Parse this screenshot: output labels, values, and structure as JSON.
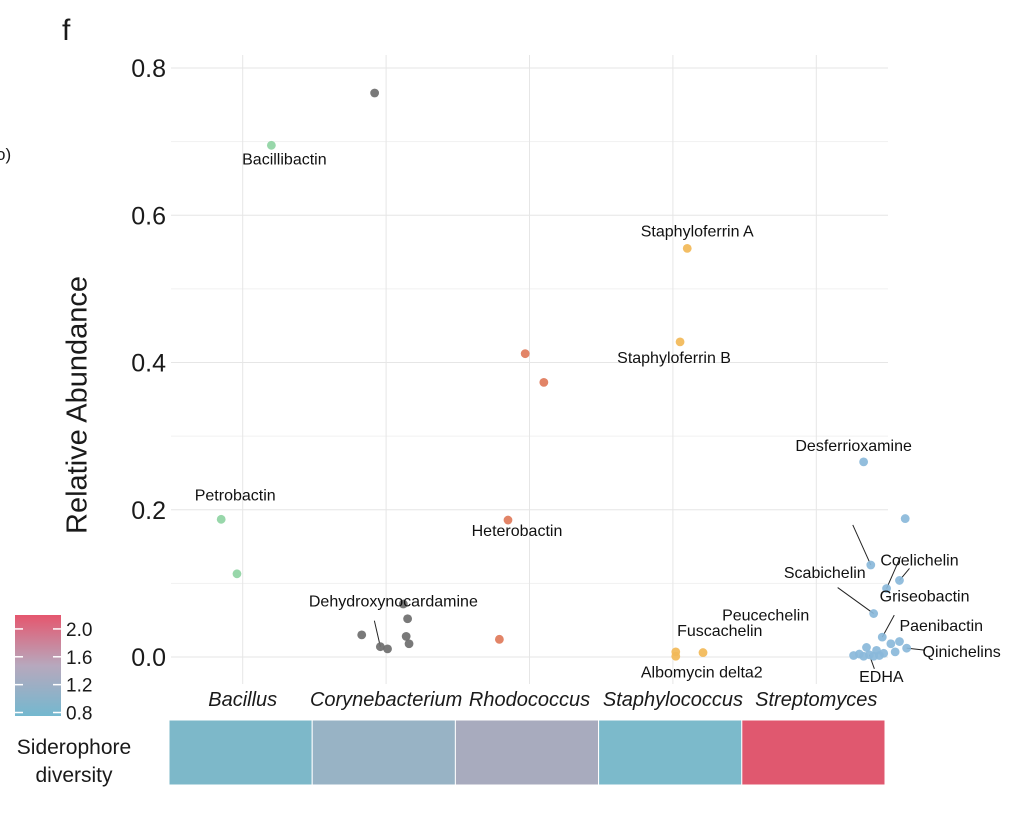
{
  "figure": {
    "panel_label": "f",
    "cut_text": "o)",
    "legend_title_line1": "Siderophore",
    "legend_title_line2": "diversity"
  },
  "chart_data": {
    "type": "scatter",
    "title": "",
    "xlabel": "",
    "ylabel": "Relative Abundance",
    "ylim": [
      0,
      0.8
    ],
    "yticks": [
      "0.0",
      "0.2",
      "0.4",
      "0.6",
      "0.8"
    ],
    "ytick_values": [
      0,
      0.2,
      0.4,
      0.6,
      0.8
    ],
    "grid": true,
    "categories": [
      "Bacillus",
      "Corynebacterium",
      "Rhodococcus",
      "Staphylococcus",
      "Streptomyces"
    ],
    "colors": {
      "Bacillus": "#8fd4a3",
      "Corynebacterium": "#6e6e6e",
      "Rhodococcus": "#e07a5a",
      "Staphylococcus": "#f2b857",
      "Streptomyces": "#8ab8da"
    },
    "points": [
      {
        "genus": "Bacillus",
        "offset": 0.2,
        "y": 0.695,
        "label": "Bacillibactin"
      },
      {
        "genus": "Bacillus",
        "offset": -0.15,
        "y": 0.187,
        "label": "Petrobactin"
      },
      {
        "genus": "Bacillus",
        "offset": -0.04,
        "y": 0.113,
        "label": ""
      },
      {
        "genus": "Corynebacterium",
        "offset": -0.08,
        "y": 0.766,
        "label": ""
      },
      {
        "genus": "Corynebacterium",
        "offset": 0.12,
        "y": 0.072,
        "label": ""
      },
      {
        "genus": "Corynebacterium",
        "offset": 0.15,
        "y": 0.052,
        "label": ""
      },
      {
        "genus": "Corynebacterium",
        "offset": -0.17,
        "y": 0.03,
        "label": ""
      },
      {
        "genus": "Corynebacterium",
        "offset": 0.14,
        "y": 0.028,
        "label": ""
      },
      {
        "genus": "Corynebacterium",
        "offset": 0.16,
        "y": 0.018,
        "label": ""
      },
      {
        "genus": "Corynebacterium",
        "offset": -0.04,
        "y": 0.014,
        "label": "Dehydroxynocardamine"
      },
      {
        "genus": "Corynebacterium",
        "offset": 0.01,
        "y": 0.011,
        "label": ""
      },
      {
        "genus": "Rhodococcus",
        "offset": -0.03,
        "y": 0.412,
        "label": ""
      },
      {
        "genus": "Rhodococcus",
        "offset": 0.1,
        "y": 0.373,
        "label": ""
      },
      {
        "genus": "Rhodococcus",
        "offset": -0.15,
        "y": 0.186,
        "label": "Heterobactin"
      },
      {
        "genus": "Rhodococcus",
        "offset": -0.21,
        "y": 0.024,
        "label": ""
      },
      {
        "genus": "Staphylococcus",
        "offset": 0.1,
        "y": 0.555,
        "label": "Staphyloferrin A"
      },
      {
        "genus": "Staphylococcus",
        "offset": 0.05,
        "y": 0.428,
        "label": "Staphyloferrin B"
      },
      {
        "genus": "Staphylococcus",
        "offset": 0.02,
        "y": 0.007,
        "label": "Fuscachelin"
      },
      {
        "genus": "Staphylococcus",
        "offset": 0.21,
        "y": 0.006,
        "label": ""
      },
      {
        "genus": "Staphylococcus",
        "offset": 0.02,
        "y": 0.001,
        "label": "Albomycin delta2"
      },
      {
        "genus": "Streptomyces",
        "offset": 0.33,
        "y": 0.265,
        "label": "Desferrioxamine"
      },
      {
        "genus": "Streptomyces",
        "offset": 0.62,
        "y": 0.188,
        "label": ""
      },
      {
        "genus": "Streptomyces",
        "offset": 0.38,
        "y": 0.125,
        "label": "Scabichelin"
      },
      {
        "genus": "Streptomyces",
        "offset": 0.58,
        "y": 0.104,
        "label": "Coelichelin"
      },
      {
        "genus": "Streptomyces",
        "offset": 0.49,
        "y": 0.093,
        "label": "Griseobactin"
      },
      {
        "genus": "Streptomyces",
        "offset": 0.4,
        "y": 0.059,
        "label": "Peucechelin"
      },
      {
        "genus": "Streptomyces",
        "offset": 0.46,
        "y": 0.027,
        "label": "Paenibactin"
      },
      {
        "genus": "Streptomyces",
        "offset": 0.58,
        "y": 0.021,
        "label": ""
      },
      {
        "genus": "Streptomyces",
        "offset": 0.52,
        "y": 0.018,
        "label": ""
      },
      {
        "genus": "Streptomyces",
        "offset": 0.63,
        "y": 0.012,
        "label": "Qinichelins"
      },
      {
        "genus": "Streptomyces",
        "offset": 0.35,
        "y": 0.013,
        "label": ""
      },
      {
        "genus": "Streptomyces",
        "offset": 0.42,
        "y": 0.009,
        "label": ""
      },
      {
        "genus": "Streptomyces",
        "offset": 0.55,
        "y": 0.007,
        "label": ""
      },
      {
        "genus": "Streptomyces",
        "offset": 0.47,
        "y": 0.005,
        "label": ""
      },
      {
        "genus": "Streptomyces",
        "offset": 0.3,
        "y": 0.004,
        "label": ""
      },
      {
        "genus": "Streptomyces",
        "offset": 0.37,
        "y": 0.003,
        "label": "EDHA"
      },
      {
        "genus": "Streptomyces",
        "offset": 0.26,
        "y": 0.002,
        "label": ""
      },
      {
        "genus": "Streptomyces",
        "offset": 0.44,
        "y": 0.002,
        "label": ""
      },
      {
        "genus": "Streptomyces",
        "offset": 0.33,
        "y": 0.001,
        "label": ""
      },
      {
        "genus": "Streptomyces",
        "offset": 0.4,
        "y": 0.001,
        "label": ""
      }
    ],
    "diversity_bar": {
      "values": [
        0.85,
        1.0,
        1.25,
        0.8,
        2.15
      ],
      "colors": [
        "#7db8c9",
        "#98b3c5",
        "#a8abbe",
        "#7cbacb",
        "#e0586f"
      ]
    },
    "legend": {
      "title": "Siderophore diversity",
      "ticks": [
        2.0,
        1.6,
        1.2,
        0.8
      ],
      "tick_labels": [
        "2.0",
        "1.6",
        "1.2",
        "0.8"
      ],
      "range": [
        0.75,
        2.2
      ],
      "color_low": "#74b8cf",
      "color_high": "#e5566e",
      "color_mid": "#b7a8bd"
    }
  }
}
